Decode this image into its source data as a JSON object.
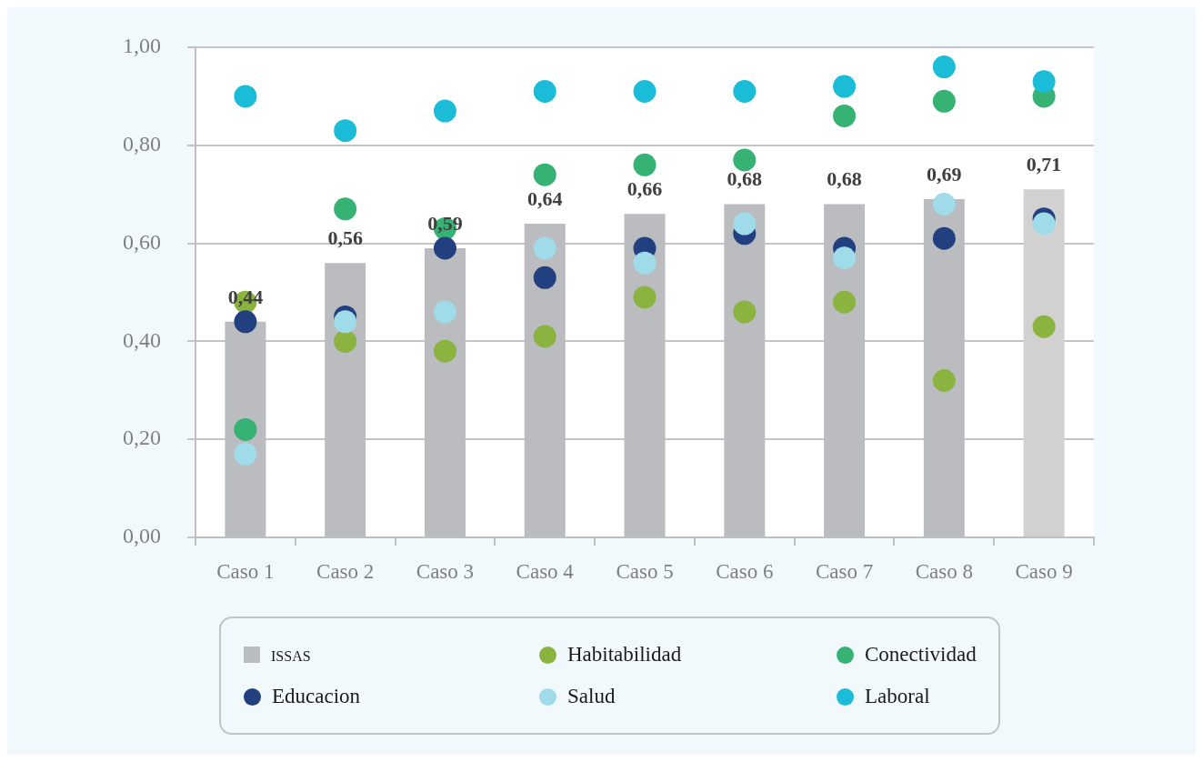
{
  "chart_data": {
    "type": "bar",
    "categories": [
      "Caso 1",
      "Caso 2",
      "Caso 3",
      "Caso 4",
      "Caso 5",
      "Caso 6",
      "Caso 7",
      "Caso 8",
      "Caso 9"
    ],
    "series": [
      {
        "name": "issas",
        "type": "bar",
        "colors": [
          "#bbbcc0",
          "#bbbcc0",
          "#bbbcc0",
          "#bbbcc0",
          "#bbbcc0",
          "#bbbcc0",
          "#bbbcc0",
          "#bbbcc0",
          "#d1d1d2"
        ],
        "values": [
          0.44,
          0.56,
          0.59,
          0.64,
          0.66,
          0.68,
          0.68,
          0.69,
          0.71
        ],
        "value_labels": [
          "0,44",
          "0,56",
          "0,59",
          "0,64",
          "0,66",
          "0,68",
          "0,68",
          "0,69",
          "0,71"
        ]
      },
      {
        "name": "Habitabilidad",
        "type": "scatter",
        "color": "#8ab43f",
        "x": [
          "Caso 1",
          "Caso 2",
          "Caso 3",
          "Caso 4",
          "Caso 5",
          "Caso 6",
          "Caso 7",
          "Caso 8",
          "Caso 9"
        ],
        "values": [
          0.48,
          0.4,
          0.38,
          0.41,
          0.49,
          0.46,
          0.48,
          0.32,
          0.43
        ]
      },
      {
        "name": "Conectividad",
        "type": "scatter",
        "color": "#35b274",
        "x": [
          "Caso 1",
          "Caso 2",
          "Caso 3",
          "Caso 4",
          "Caso 5",
          "Caso 6",
          "Caso 7",
          "Caso 8",
          "Caso 9"
        ],
        "values": [
          0.22,
          0.67,
          0.63,
          0.74,
          0.76,
          0.77,
          0.86,
          0.89,
          0.9
        ]
      },
      {
        "name": "Educacion",
        "type": "scatter",
        "color": "#224080",
        "x": [
          "Caso 1",
          "Caso 2",
          "Caso 3",
          "Caso 4",
          "Caso 5",
          "Caso 6",
          "Caso 7",
          "Caso 8",
          "Caso 9"
        ],
        "values": [
          0.44,
          0.45,
          0.59,
          0.53,
          0.59,
          0.62,
          0.59,
          0.61,
          0.65
        ]
      },
      {
        "name": "Salud",
        "type": "scatter",
        "color": "#a0dbea",
        "x": [
          "Caso 1",
          "Caso 2",
          "Caso 3",
          "Caso 4",
          "Caso 5",
          "Caso 6",
          "Caso 7",
          "Caso 8",
          "Caso 9"
        ],
        "values": [
          0.17,
          0.44,
          0.46,
          0.59,
          0.56,
          0.64,
          0.57,
          0.68,
          0.64
        ]
      },
      {
        "name": "Laboral",
        "type": "scatter",
        "color": "#1bbcd8",
        "x": [
          "Caso 1",
          "Caso 2",
          "Caso 3",
          "Caso 4",
          "Caso 5",
          "Caso 6",
          "Caso 7",
          "Caso 8",
          "Caso 9"
        ],
        "values": [
          0.9,
          0.83,
          0.87,
          0.91,
          0.91,
          0.91,
          0.92,
          0.96,
          0.93
        ]
      }
    ],
    "ylim": [
      0,
      1
    ],
    "yticks": [
      {
        "value": 0,
        "label": "0,00"
      },
      {
        "value": 0.2,
        "label": "0,20"
      },
      {
        "value": 0.4,
        "label": "0,40"
      },
      {
        "value": 0.6,
        "label": "0,60"
      },
      {
        "value": 0.8,
        "label": "0,80"
      },
      {
        "value": 1,
        "label": "1,00"
      }
    ],
    "grid": "y",
    "legend": "bottom",
    "marker": "circle"
  }
}
